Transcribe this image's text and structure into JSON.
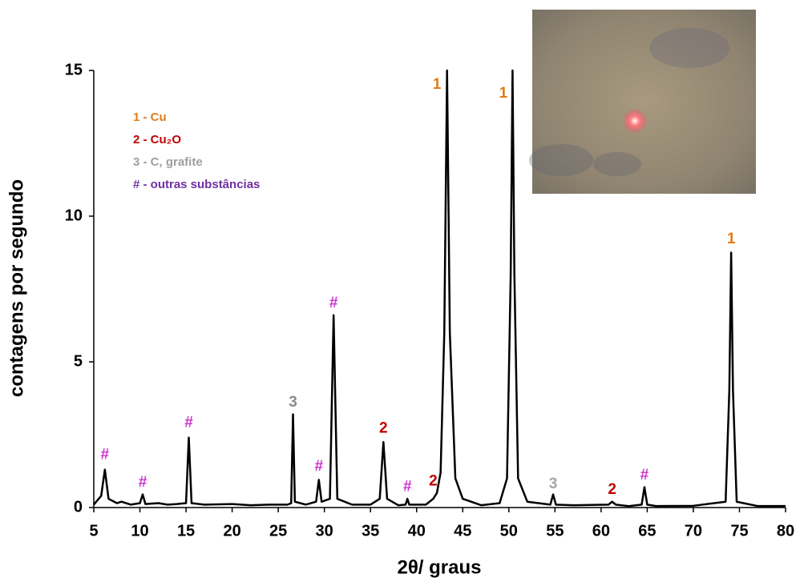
{
  "chart_data": {
    "type": "line",
    "xlabel": "2θ/ graus",
    "ylabel": "contagens por segundo",
    "color": "#000000",
    "xlim": [
      5,
      80
    ],
    "xticks": [
      5,
      10,
      15,
      20,
      25,
      30,
      35,
      40,
      45,
      50,
      55,
      60,
      65,
      70,
      75,
      80
    ],
    "ylim": [
      0,
      15
    ],
    "yticks": [
      0,
      5,
      10,
      15
    ],
    "x": [
      5,
      5.8,
      6.2,
      6.6,
      7.5,
      8,
      9,
      10,
      10.3,
      10.6,
      12,
      13,
      14,
      15,
      15.3,
      15.6,
      17,
      20,
      22,
      24,
      26,
      26.4,
      26.6,
      26.8,
      28,
      29.1,
      29.4,
      29.7,
      30.6,
      31.0,
      31.4,
      33,
      35,
      36,
      36.4,
      36.8,
      38,
      38.8,
      39.0,
      39.2,
      41,
      41.8,
      42.2,
      42.6,
      43.0,
      43.3,
      43.6,
      44.2,
      45,
      47,
      49,
      49.8,
      50.2,
      50.4,
      50.6,
      51,
      52,
      54.5,
      54.8,
      55.1,
      57,
      60.8,
      61.2,
      61.6,
      63,
      64.4,
      64.7,
      65,
      66,
      70,
      73.5,
      73.9,
      74.1,
      74.3,
      74.7,
      77,
      80
    ],
    "values": [
      0.1,
      0.4,
      1.3,
      0.3,
      0.15,
      0.2,
      0.1,
      0.15,
      0.45,
      0.12,
      0.15,
      0.1,
      0.12,
      0.15,
      2.4,
      0.15,
      0.1,
      0.12,
      0.08,
      0.1,
      0.1,
      0.15,
      3.2,
      0.2,
      0.1,
      0.2,
      0.95,
      0.2,
      0.3,
      6.6,
      0.3,
      0.1,
      0.1,
      0.3,
      2.25,
      0.3,
      0.08,
      0.1,
      0.3,
      0.1,
      0.1,
      0.3,
      0.5,
      1.2,
      6,
      15,
      6,
      1,
      0.3,
      0.08,
      0.15,
      1,
      8,
      15,
      8,
      1,
      0.2,
      0.1,
      0.45,
      0.1,
      0.08,
      0.1,
      0.2,
      0.1,
      0.05,
      0.1,
      0.7,
      0.1,
      0.05,
      0.06,
      0.2,
      4,
      8.75,
      4,
      0.2,
      0.05,
      0.05
    ],
    "annotations": [
      {
        "text": "#",
        "x": 6.2,
        "y": 1.8,
        "color": "#cc33cc"
      },
      {
        "text": "#",
        "x": 10.3,
        "y": 0.85,
        "color": "#cc33cc"
      },
      {
        "text": "#",
        "x": 15.3,
        "y": 2.9,
        "color": "#cc33cc"
      },
      {
        "text": "3",
        "x": 26.6,
        "y": 3.6,
        "color": "#8c8c8c"
      },
      {
        "text": "#",
        "x": 29.4,
        "y": 1.4,
        "color": "#cc33cc"
      },
      {
        "text": "#",
        "x": 31.0,
        "y": 7.0,
        "color": "#cc33cc"
      },
      {
        "text": "2",
        "x": 36.4,
        "y": 2.7,
        "color": "#c00000"
      },
      {
        "text": "#",
        "x": 39.0,
        "y": 0.7,
        "color": "#cc33cc"
      },
      {
        "text": "2",
        "x": 41.8,
        "y": 0.9,
        "color": "#c00000"
      },
      {
        "text": "1",
        "x": 42.2,
        "y": 14.5,
        "color": "#e07b1a"
      },
      {
        "text": "1",
        "x": 49.4,
        "y": 14.2,
        "color": "#e07b1a"
      },
      {
        "text": "3",
        "x": 54.8,
        "y": 0.8,
        "color": "#a6a6a6"
      },
      {
        "text": "2",
        "x": 61.2,
        "y": 0.6,
        "color": "#c00000"
      },
      {
        "text": "#",
        "x": 64.7,
        "y": 1.1,
        "color": "#cc33cc"
      },
      {
        "text": "1",
        "x": 74.1,
        "y": 9.2,
        "color": "#e07b1a"
      }
    ],
    "legend": [
      {
        "text": "1 - Cu",
        "color": "#e07b1a"
      },
      {
        "text": "2 - Cu₂O",
        "color": "#c00000"
      },
      {
        "text": "3 - C, grafite",
        "color": "#9e9e9e"
      },
      {
        "text": "# - outras substâncias",
        "color": "#7030a0"
      }
    ]
  }
}
